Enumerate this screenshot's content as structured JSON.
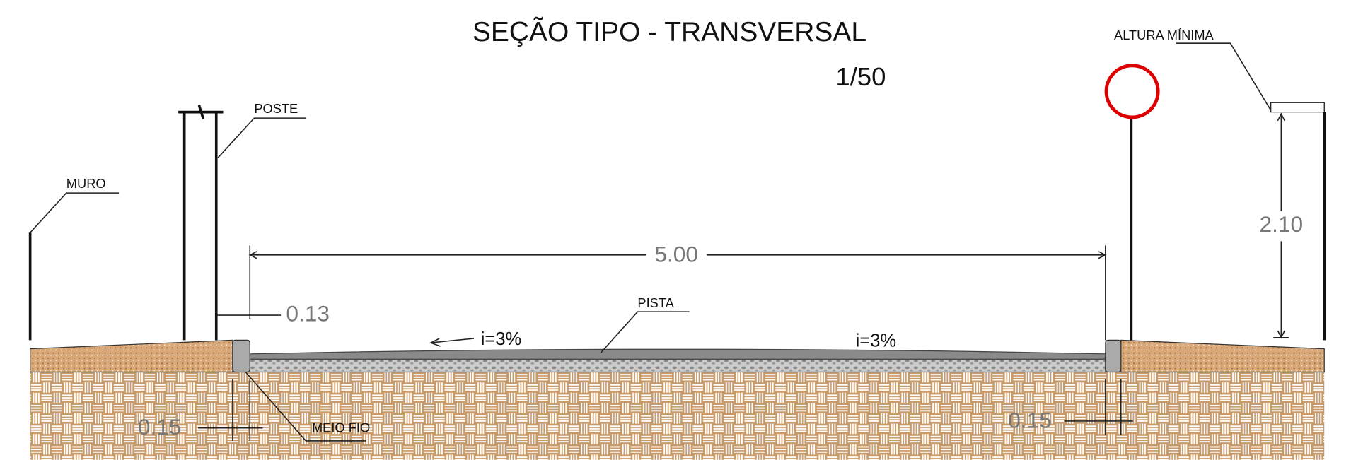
{
  "title": "SEÇÃO TIPO - TRANSVERSAL",
  "scale": "1/50",
  "labels": {
    "poste": "POSTE",
    "muro": "MURO",
    "altura_minima": "ALTURA MÍNIMA",
    "pista": "PISTA",
    "meio_fio": "MEIO FIO"
  },
  "dimensions": {
    "width": "5.00",
    "curb_gap": "0.13",
    "height": "2.10",
    "curb_left": "0.15",
    "curb_right": "0.15"
  },
  "slopes": {
    "left": "i=3%",
    "right": "i=3%"
  }
}
